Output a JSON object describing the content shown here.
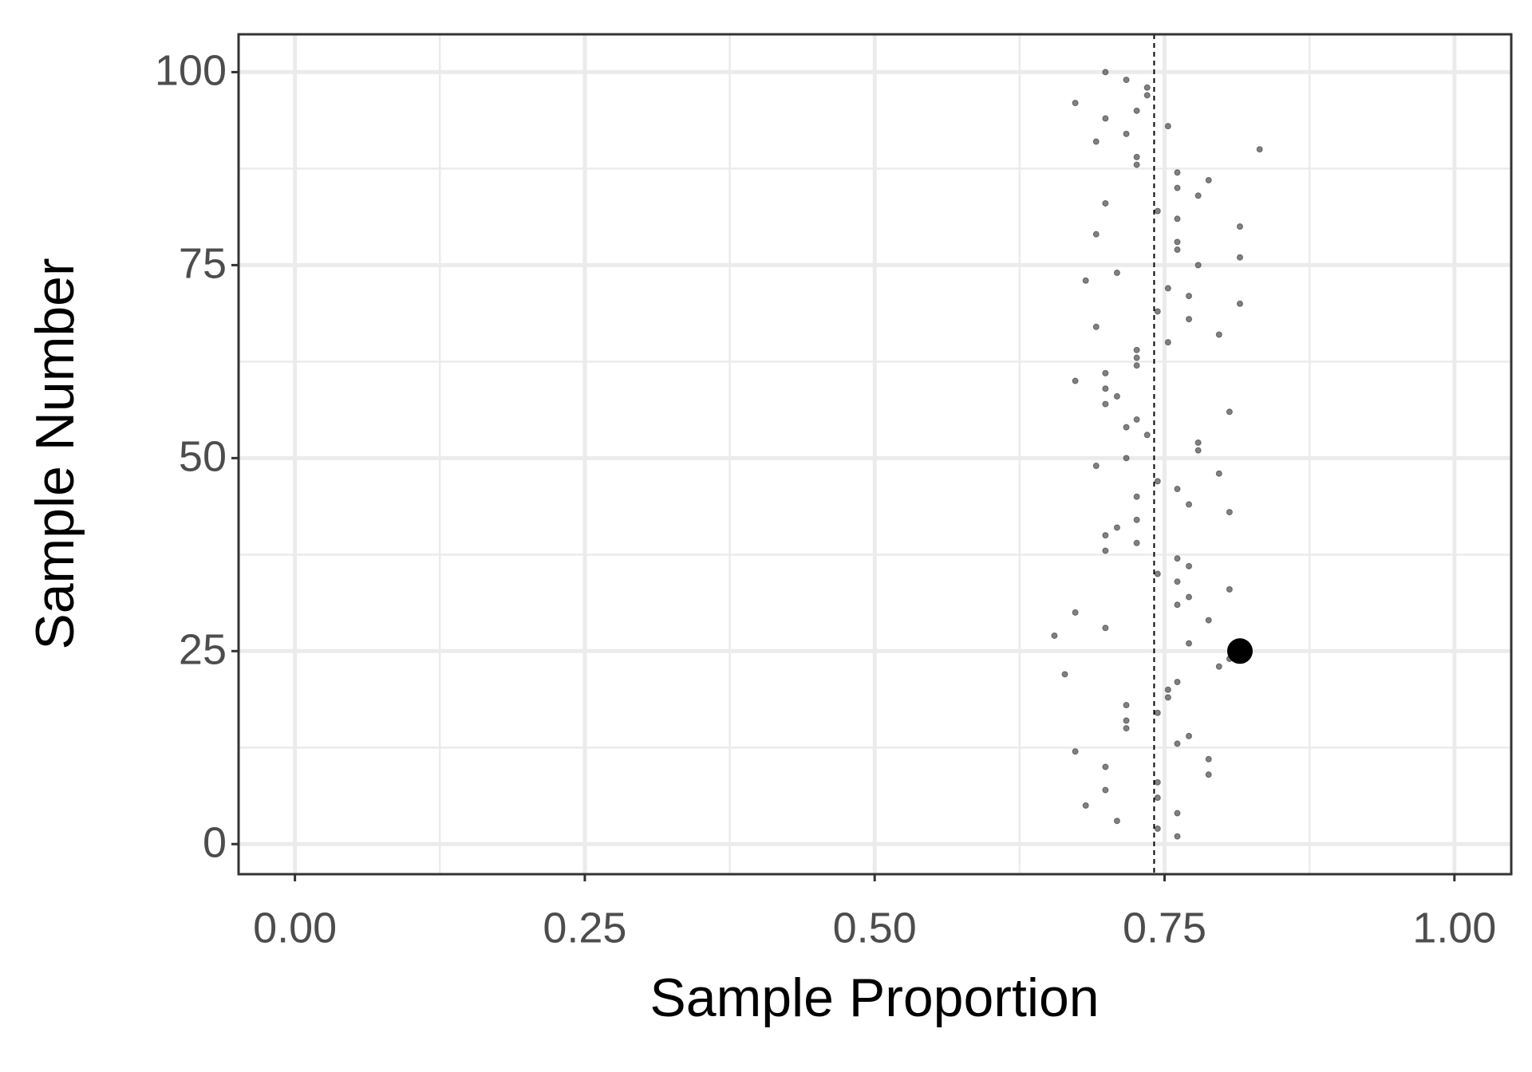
{
  "chart_data": {
    "type": "scatter",
    "x_label": "Sample Proportion",
    "y_label": "Sample Number",
    "xlim": [
      -0.0486,
      1.049
    ],
    "ylim": [
      -3.9,
      104.9
    ],
    "xticks": [
      {
        "value": 0,
        "label": "0.00"
      },
      {
        "value": 0.25,
        "label": "0.25"
      },
      {
        "value": 0.5,
        "label": "0.50"
      },
      {
        "value": 0.75,
        "label": "0.75"
      },
      {
        "value": 1,
        "label": "1.00"
      }
    ],
    "yticks": [
      0,
      25,
      50,
      75,
      100
    ],
    "x_minor_ticks": [
      0.125,
      0.375,
      0.625,
      0.875
    ],
    "y_minor_ticks": [
      12.5,
      37.5,
      62.5,
      87.5
    ],
    "grid": true,
    "color": "#555555",
    "x": [
      0.761,
      0.744,
      0.709,
      0.761,
      0.682,
      0.744,
      0.699,
      0.744,
      0.788,
      0.699,
      0.788,
      0.673,
      0.761,
      0.771,
      0.717,
      0.717,
      0.744,
      0.717,
      0.753,
      0.753,
      0.761,
      0.664,
      0.797,
      0.806,
      0.815,
      0.771,
      0.655,
      0.699,
      0.788,
      0.673,
      0.761,
      0.771,
      0.806,
      0.761,
      0.744,
      0.771,
      0.761,
      0.699,
      0.726,
      0.699,
      0.709,
      0.726,
      0.806,
      0.771,
      0.726,
      0.761,
      0.744,
      0.797,
      0.691,
      0.717,
      0.779,
      0.779,
      0.735,
      0.717,
      0.726,
      0.806,
      0.699,
      0.709,
      0.699,
      0.673,
      0.699,
      0.726,
      0.726,
      0.726,
      0.753,
      0.797,
      0.691,
      0.771,
      0.744,
      0.815,
      0.771,
      0.753,
      0.682,
      0.709,
      0.779,
      0.815,
      0.761,
      0.761,
      0.691,
      0.815,
      0.761,
      0.744,
      0.699,
      0.779,
      0.761,
      0.788,
      0.761,
      0.726,
      0.726,
      0.832,
      0.691,
      0.717,
      0.753,
      0.699,
      0.726,
      0.673,
      0.735,
      0.735,
      0.717,
      0.699
    ],
    "y": [
      1,
      2,
      3,
      4,
      5,
      6,
      7,
      8,
      9,
      10,
      11,
      12,
      13,
      14,
      15,
      16,
      17,
      18,
      19,
      20,
      21,
      22,
      23,
      24,
      25,
      26,
      27,
      28,
      29,
      30,
      31,
      32,
      33,
      34,
      35,
      36,
      37,
      38,
      39,
      40,
      41,
      42,
      43,
      44,
      45,
      46,
      47,
      48,
      49,
      50,
      51,
      52,
      53,
      54,
      55,
      56,
      57,
      58,
      59,
      60,
      61,
      62,
      63,
      64,
      65,
      66,
      67,
      68,
      69,
      70,
      71,
      72,
      73,
      74,
      75,
      76,
      77,
      78,
      79,
      80,
      81,
      82,
      83,
      84,
      85,
      86,
      87,
      88,
      89,
      90,
      91,
      92,
      93,
      94,
      95,
      96,
      97,
      98,
      99,
      100
    ],
    "highlight": {
      "x": 0.815,
      "y": 25,
      "color": "#000000"
    },
    "vline": 0.741
  }
}
